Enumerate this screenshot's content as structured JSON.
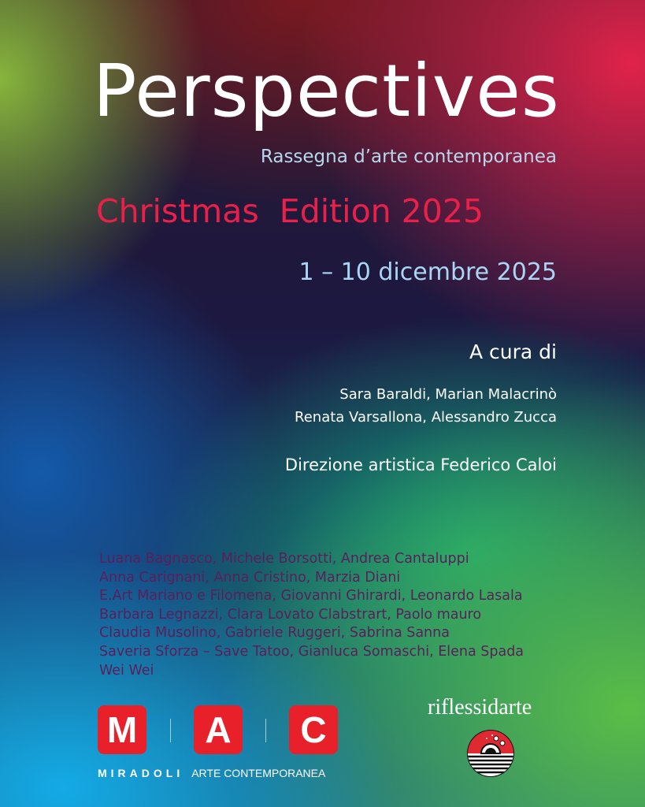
{
  "poster": {
    "title": "Perspectives",
    "subtitle": "Rassegna d’arte contemporanea",
    "edition": "Christmas  Edition 2025",
    "dates": "1 – 10 dicembre 2025",
    "curated_by_label": "A cura di",
    "curators": [
      "Sara Baraldi, Marian Malacrinò",
      "Renata Varsallona, Alessandro Zucca"
    ],
    "artistic_direction": "Direzione artistica Federico Caloi",
    "artists": [
      "Luana Bagnasco, Michele Borsotti, Andrea Cantaluppi",
      "Anna Carignani, Anna Cristino, Marzia Diani",
      "E.Art Mariano e Filomena, Giovanni Ghirardi, Leonardo Lasala",
      "Barbara Legnazzi, Clara Lovato Clabstrart, Paolo mauro",
      "Claudia Musolino, Gabriele Ruggeri, Sabrina Sanna",
      "Saveria Sforza – Save Tatoo, Gianluca Somaschi, Elena Spada",
      "Wei Wei"
    ]
  },
  "logos": {
    "mac": {
      "letters": [
        "M",
        "A",
        "C"
      ],
      "name": "MIRADOLI",
      "tagline": "ARTE CONTEMPORANEA",
      "color": "#e8202a"
    },
    "riflessidarte": {
      "name": "riflessidarte",
      "icon": "sunset-sea-emblem-icon"
    }
  },
  "colors": {
    "title": "#ffffff",
    "edition": "#e8204a",
    "dates": "#a9d6f5",
    "artists": "#5a1f5a"
  }
}
